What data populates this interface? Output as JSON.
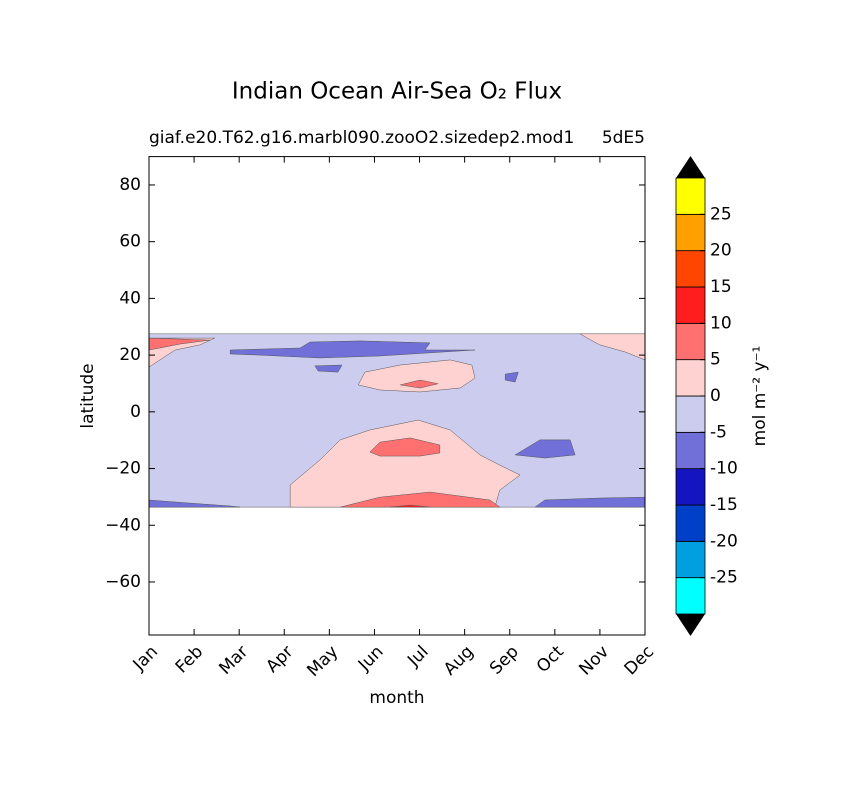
{
  "chart_data": {
    "type": "contour",
    "title": "Indian Ocean Air-Sea O₂ Flux",
    "subtitle_left": "giaf.e20.T62.g16.marbl090.zooO2.sizedep2.mod1",
    "subtitle_right": "5dE5",
    "xlabel": "month",
    "ylabel": "latitude",
    "xlim": [
      0,
      11
    ],
    "ylim": [
      -78.7,
      90
    ],
    "xticks": [
      {
        "value": 0,
        "label": "Jan"
      },
      {
        "value": 1,
        "label": "Feb"
      },
      {
        "value": 2,
        "label": "Mar"
      },
      {
        "value": 3,
        "label": "Apr"
      },
      {
        "value": 4,
        "label": "May"
      },
      {
        "value": 5,
        "label": "Jun"
      },
      {
        "value": 6,
        "label": "Jul"
      },
      {
        "value": 7,
        "label": "Aug"
      },
      {
        "value": 8,
        "label": "Sep"
      },
      {
        "value": 9,
        "label": "Oct"
      },
      {
        "value": 10,
        "label": "Nov"
      },
      {
        "value": 11,
        "label": "Dec"
      }
    ],
    "yticks": [
      {
        "value": -60,
        "label": "−60"
      },
      {
        "value": -40,
        "label": "−40"
      },
      {
        "value": -20,
        "label": "−20"
      },
      0,
      20,
      40,
      60,
      80
    ],
    "colorbar": {
      "label": "mol m⁻² y⁻¹",
      "levels": [
        -30,
        -25,
        -20,
        -15,
        -10,
        -5,
        0,
        5,
        10,
        15,
        20,
        25,
        30
      ],
      "colors": [
        "#00ffff",
        "#00a0e0",
        "#0040c8",
        "#1414c0",
        "#7070d8",
        "#ccccee",
        "#ffd2d2",
        "#ff7070",
        "#ff1e1e",
        "#ff4600",
        "#ffa000",
        "#ffff00"
      ],
      "ticks": [
        -25,
        -20,
        -15,
        -10,
        -5,
        0,
        5,
        10,
        15,
        20,
        25
      ]
    },
    "regions": [
      {
        "level": -5,
        "x": [
          0,
          11,
          11,
          0
        ],
        "y": [
          27.5,
          27.5,
          -33.6,
          -33.6
        ]
      },
      {
        "level": 0,
        "x": [
          0,
          1.46,
          1.13,
          0.58,
          0.24,
          0
        ],
        "y": [
          26,
          26,
          23.6,
          21.8,
          18.3,
          15.8
        ]
      },
      {
        "level": 5,
        "x": [
          0,
          1.35,
          0.69,
          0.24,
          0
        ],
        "y": [
          26,
          25.3,
          23.9,
          22.5,
          21.8
        ]
      },
      {
        "level": 0,
        "x": [
          9.56,
          11,
          11,
          10.56,
          10.0,
          9.8
        ],
        "y": [
          27.5,
          27.5,
          18.3,
          21.1,
          23.6,
          25.3
        ]
      },
      {
        "level": -10,
        "x": [
          1.8,
          3.35,
          3.57,
          4.68,
          6.23,
          6.12,
          7.23,
          5.12,
          3.79,
          2.46,
          1.8
        ],
        "y": [
          21.8,
          22.5,
          24.6,
          25,
          24.3,
          21.8,
          21.8,
          19.7,
          19,
          20,
          20.4
        ]
      },
      {
        "level": -10,
        "x": [
          3.68,
          4.28,
          4.19,
          3.75
        ],
        "y": [
          16.2,
          16.5,
          14.0,
          14.4
        ]
      },
      {
        "level": 0,
        "x": [
          4.64,
          4.79,
          5.57,
          6.68,
          7.16,
          7.23,
          6.9,
          6.01,
          5.12
        ],
        "y": [
          9.5,
          14.0,
          16.5,
          18.3,
          16.5,
          11.9,
          8.4,
          7,
          7.7
        ]
      },
      {
        "level": 5,
        "x": [
          5.57,
          6.01,
          6.41,
          6.01
        ],
        "y": [
          9.5,
          11.2,
          9.9,
          8.4
        ]
      },
      {
        "level": 0,
        "x": [
          3.13,
          3.13,
          3.79,
          4.24,
          4.9,
          5.97,
          6.68,
          7.34,
          7.78,
          8.23,
          7.78,
          7.67
        ],
        "y": [
          -33.6,
          -25.8,
          -17,
          -9.9,
          -6.4,
          -2.9,
          -6.4,
          -15.2,
          -18.8,
          -22.3,
          -27.6,
          -33.6
        ]
      },
      {
        "level": 5,
        "x": [
          4.9,
          5.12,
          5.79,
          6.45,
          6.45,
          6.01,
          5.12
        ],
        "y": [
          -14.2,
          -10.7,
          -9.2,
          -11.7,
          -14.5,
          -15.6,
          -15.6
        ]
      },
      {
        "level": 5,
        "x": [
          4.24,
          5.12,
          6.23,
          7.56,
          7.78
        ],
        "y": [
          -33.6,
          -30.1,
          -28.3,
          -31.1,
          -33.6
        ]
      },
      {
        "level": 10,
        "x": [
          5.34,
          5.79,
          6.23
        ],
        "y": [
          -33.6,
          -32.9,
          -33.6
        ]
      },
      {
        "level": -10,
        "x": [
          0,
          0.91,
          1.8,
          2.02,
          0
        ],
        "y": [
          -31.1,
          -32.2,
          -33.2,
          -33.6,
          -33.6
        ]
      },
      {
        "level": -10,
        "x": [
          8.56,
          8.78,
          10.0,
          11,
          11
        ],
        "y": [
          -33.6,
          -31.1,
          -30.4,
          -30.1,
          -33.6
        ]
      },
      {
        "level": -10,
        "x": [
          8.12,
          8.67,
          9.34,
          9.45,
          8.78
        ],
        "y": [
          -15.2,
          -9.9,
          -9.9,
          -15.2,
          -16.3
        ]
      },
      {
        "level": -10,
        "x": [
          7.9,
          8.19,
          8.12,
          7.9
        ],
        "y": [
          13.3,
          14.0,
          10.5,
          11.2
        ]
      }
    ]
  }
}
